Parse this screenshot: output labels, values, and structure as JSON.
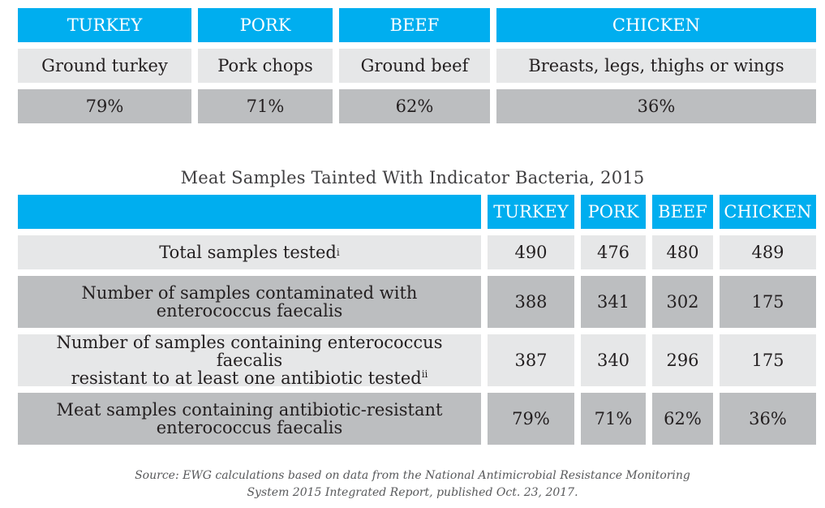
{
  "summary_table": {
    "headers": [
      "TURKEY",
      "PORK",
      "BEEF",
      "CHICKEN"
    ],
    "products": [
      "Ground turkey",
      "Pork chops",
      "Ground beef",
      "Breasts, legs, thighs or wings"
    ],
    "percents": [
      "79%",
      "71%",
      "62%",
      "36%"
    ]
  },
  "detail_table": {
    "title": "Meat Samples Tainted With Indicator Bacteria, 2015",
    "headers": [
      "",
      "TURKEY",
      "PORK",
      "BEEF",
      "CHICKEN"
    ],
    "rows": [
      {
        "label": "Total samples tested",
        "sup": "i",
        "values": [
          "490",
          "476",
          "480",
          "489"
        ]
      },
      {
        "label_line1": "Number of samples contaminated with",
        "label_line2": "enterococcus faecalis",
        "values": [
          "388",
          "341",
          "302",
          "175"
        ]
      },
      {
        "label_line1": "Number of samples containing enterococcus faecalis",
        "label_line2": "resistant to at least one antibiotic tested",
        "sup": "ii",
        "values": [
          "387",
          "340",
          "296",
          "175"
        ]
      },
      {
        "label_line1": "Meat samples containing antibiotic-resistant",
        "label_line2": "enterococcus faecalis",
        "values": [
          "79%",
          "71%",
          "62%",
          "36%"
        ]
      }
    ]
  },
  "source": {
    "line1": "Source: EWG calculations based on data from the National Antimicrobial Resistance Monitoring",
    "line2": "System 2015 Integrated Report, published Oct. 23, 2017."
  },
  "colors": {
    "header": "#00aeef",
    "light_row": "#e6e7e8",
    "dark_row": "#bcbec0"
  }
}
